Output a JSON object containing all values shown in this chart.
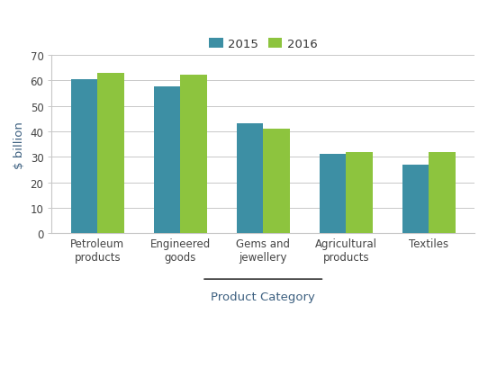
{
  "categories": [
    "Petroleum\nproducts",
    "Engineered\ngoods",
    "Gems and\njewellery",
    "Agricultural\nproducts",
    "Textiles"
  ],
  "values_2015": [
    60.5,
    57.5,
    43.0,
    31.0,
    27.0
  ],
  "values_2016": [
    63.0,
    62.0,
    41.0,
    32.0,
    32.0
  ],
  "color_2015": "#3d8fa4",
  "color_2016": "#8dc43e",
  "ylabel": "$ billion",
  "xlabel": "Product Category",
  "legend_2015": "2015",
  "legend_2016": "2016",
  "ylim": [
    0,
    70
  ],
  "yticks": [
    0,
    10,
    20,
    30,
    40,
    50,
    60,
    70
  ],
  "bar_width": 0.32,
  "axis_label_fontsize": 9.5,
  "tick_fontsize": 8.5,
  "legend_fontsize": 9.5,
  "ylabel_color": "#3d6080",
  "xlabel_color": "#3d6080",
  "grid_color": "#c8c8c8"
}
